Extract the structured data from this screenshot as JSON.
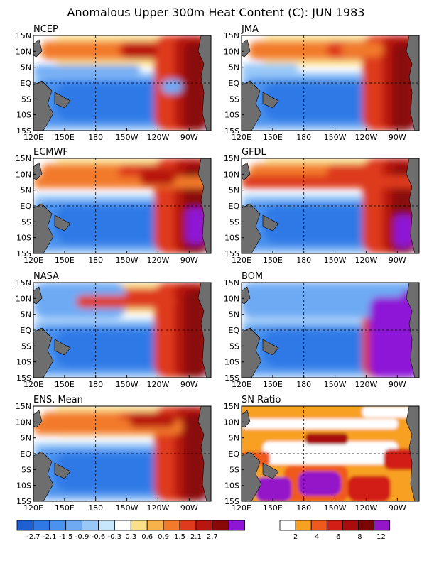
{
  "title": "Anomalous Upper 300m Heat Content (C): JUN 1983",
  "panels": [
    {
      "name": "NCEP"
    },
    {
      "name": "JMA"
    },
    {
      "name": "ECMWF"
    },
    {
      "name": "GFDL"
    },
    {
      "name": "NASA"
    },
    {
      "name": "BOM"
    },
    {
      "name": "ENS. Mean"
    },
    {
      "name": "SN Ratio"
    }
  ],
  "colors": {
    "land": "#6e6e6e",
    "grid": "#000000"
  },
  "chart_data": {
    "type": "heatmap",
    "title": "Anomalous Upper 300m Heat Content (C): JUN 1983",
    "x_ticks": [
      "120E",
      "150E",
      "180",
      "150W",
      "120W",
      "90W"
    ],
    "y_ticks": [
      "15N",
      "10N",
      "5N",
      "EQ",
      "5S",
      "10S",
      "15S"
    ],
    "xlim": [
      "120E",
      "75W"
    ],
    "ylim": [
      "15S",
      "15N"
    ],
    "reference_lines": {
      "lon": "180",
      "lat": "EQ"
    },
    "anomaly_colorbar": {
      "labels": [
        "-2.7",
        "-2.1",
        "-1.5",
        "-0.9",
        "-0.6",
        "-0.3",
        "0.3",
        "0.6",
        "0.9",
        "1.5",
        "2.1",
        "2.7"
      ],
      "colors": [
        "#1e5fd2",
        "#2e79e6",
        "#4a92ef",
        "#6eaaf4",
        "#98c8f8",
        "#c8e6fc",
        "#ffffff",
        "#fbe08a",
        "#f8b24a",
        "#f27a2c",
        "#de3a1c",
        "#b8160e",
        "#8a0808",
        "#8e14d6"
      ]
    },
    "sn_colorbar": {
      "labels": [
        "2",
        "4",
        "6",
        "8",
        "12"
      ],
      "colors": [
        "#ffffff",
        "#f8a020",
        "#ef5a1c",
        "#d21e14",
        "#a80c0c",
        "#7a0606",
        "#9416c8"
      ]
    }
  }
}
